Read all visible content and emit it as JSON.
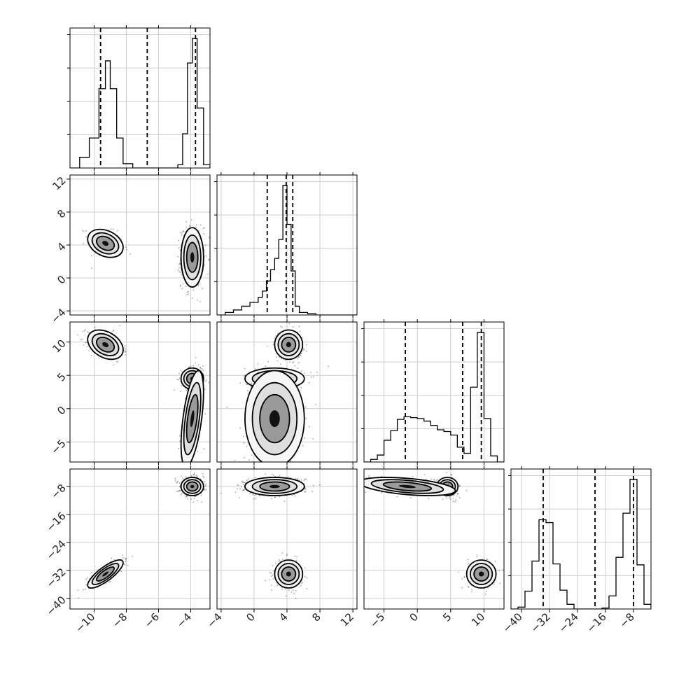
{
  "chart_data": {
    "type": "corner",
    "title": "",
    "parameters": 4,
    "axes": [
      {
        "range": [
          -11.5,
          -2.8
        ],
        "ticks": [
          -10,
          -8,
          -6,
          -4
        ]
      },
      {
        "range": [
          -4.5,
          12.5
        ],
        "ticks": [
          -4,
          0,
          4,
          8,
          12
        ]
      },
      {
        "range": [
          -8,
          13
        ],
        "ticks": [
          -5,
          0,
          5,
          10
        ]
      },
      {
        "range": [
          -43,
          -3
        ],
        "ticks": [
          -40,
          -32,
          -24,
          -16,
          -8
        ]
      }
    ],
    "grid": true,
    "marginals": [
      {
        "bin_edges": [
          -11.5,
          -10.9,
          -10.3,
          -9.7,
          -9.3,
          -9.0,
          -8.6,
          -8.2,
          -7.6,
          -7.0,
          -6.4,
          -5.8,
          -5.2,
          -4.8,
          -4.5,
          -4.2,
          -3.9,
          -3.6,
          -3.2,
          -2.8
        ],
        "counts": [
          0,
          0.1,
          0.28,
          0.74,
          1.0,
          0.74,
          0.28,
          0.04,
          0,
          0,
          0,
          0,
          0,
          0.03,
          0.32,
          0.98,
          1.21,
          0.56,
          0.03
        ],
        "quantiles": [
          -9.6,
          -6.7,
          -3.7
        ]
      },
      {
        "bin_edges": [
          -4.5,
          -3.5,
          -2.5,
          -1.5,
          -0.5,
          0.5,
          1.0,
          1.5,
          2.0,
          2.5,
          3.0,
          3.5,
          4.0,
          4.5,
          5.0,
          5.5,
          6.5,
          7.5,
          8.5,
          12.5
        ],
        "counts": [
          0,
          0.02,
          0.04,
          0.07,
          0.1,
          0.14,
          0.19,
          0.27,
          0.36,
          0.45,
          0.6,
          1.03,
          0.72,
          0.35,
          0.07,
          0.02,
          0.01,
          0.0,
          0.0
        ],
        "quantiles": [
          1.6,
          3.9,
          4.7
        ]
      },
      {
        "bin_edges": [
          -8,
          -7,
          -6,
          -5,
          -4,
          -3,
          -2,
          -1,
          0,
          1,
          2,
          3,
          4,
          5,
          6,
          7,
          8,
          9,
          10,
          11,
          12,
          13
        ],
        "counts": [
          0,
          0.03,
          0.08,
          0.25,
          0.36,
          0.49,
          0.52,
          0.51,
          0.5,
          0.47,
          0.42,
          0.37,
          0.35,
          0.31,
          0.17,
          0.1,
          0.86,
          1.49,
          0.5,
          0.07,
          0
        ],
        "quantiles": [
          -1.8,
          6.8,
          9.6
        ]
      },
      {
        "bin_edges": [
          -43,
          -41,
          -39,
          -37,
          -35,
          -33,
          -31,
          -29,
          -27,
          -25,
          -23,
          -21,
          -19,
          -17,
          -15,
          -13,
          -11,
          -9,
          -7,
          -5,
          -3
        ],
        "counts": [
          0,
          0.02,
          0.19,
          0.51,
          0.95,
          0.92,
          0.48,
          0.2,
          0.05,
          0,
          0,
          0,
          0,
          0.01,
          0.14,
          0.55,
          1.02,
          1.38,
          0.47,
          0.05
        ],
        "quantiles": [
          -33.8,
          -19.0,
          -8.0
        ]
      }
    ],
    "clusters": [
      {
        "means": [
          -9.3,
          4.2,
          9.6,
          -33.0
        ],
        "sds": [
          0.55,
          0.85,
          1.1,
          2.0
        ],
        "rho": {
          "0-1": -0.3,
          "0-2": -0.35,
          "0-3": 0.8,
          "1-2": 0.0,
          "1-3": 0.0,
          "2-3": 0.0
        }
      },
      {
        "means": [
          -3.9,
          2.5,
          4.5,
          -8.0
        ],
        "sds": [
          0.35,
          1.8,
          0.8,
          1.3
        ],
        "rho": {
          "0-1": 0.0,
          "0-2": 0.0,
          "0-3": 0.0,
          "1-2": 0.0,
          "1-3": 0.0,
          "2-3": 0.0
        }
      },
      {
        "means": [
          -3.9,
          2.5,
          -1.5,
          -8.0
        ],
        "sds": [
          0.35,
          1.8,
          3.6,
          1.3
        ],
        "rho": {
          "0-1": 0.0,
          "0-2": 0.55,
          "0-3": 0.0,
          "1-2": 0.0,
          "1-3": 0.0,
          "2-3": -0.45
        }
      }
    ]
  }
}
